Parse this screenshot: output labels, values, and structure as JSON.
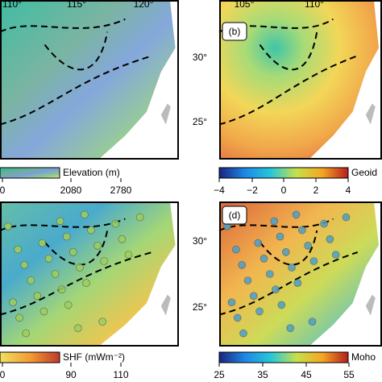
{
  "lon_labels_left": [
    "110°",
    "115°",
    "120°"
  ],
  "lon_labels_right": [
    "105°",
    "110°"
  ],
  "lat_labels_top": [
    "30°",
    "25°"
  ],
  "lat_labels_bottom": [
    "30°",
    "25°"
  ],
  "panels": [
    {
      "colorbar_label": "Elevation (m)",
      "ticks": [
        "0",
        "2080",
        "2780"
      ]
    },
    {
      "label": "(b)",
      "colorbar_label": "Geoid",
      "ticks": [
        "−4",
        "−2",
        "0",
        "2",
        "4"
      ]
    },
    {
      "colorbar_label": "SHF (mWm⁻²)",
      "ticks": [
        "0",
        "90",
        "110"
      ]
    },
    {
      "label": "(d)",
      "colorbar_label": "Moho",
      "ticks": [
        "25",
        "35",
        "45",
        "55"
      ]
    }
  ]
}
